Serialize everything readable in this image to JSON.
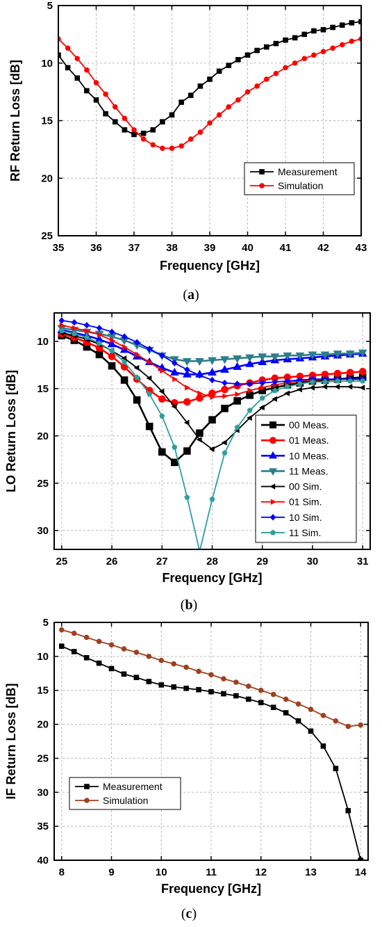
{
  "chart_data": [
    {
      "type": "line",
      "caption": "a",
      "xlabel": "Frequency [GHz]",
      "ylabel": "RF Return Loss [dB]",
      "xlim": [
        35,
        43
      ],
      "ylim": [
        5,
        25
      ],
      "y_inverted": true,
      "xticks": [
        35,
        36,
        37,
        38,
        39,
        40,
        41,
        42,
        43
      ],
      "yticks": [
        5,
        10,
        15,
        20,
        25
      ],
      "grid": true,
      "legend_position": "lower-right",
      "series": [
        {
          "name": "Measurement",
          "color": "#000000",
          "marker": "square",
          "x": [
            35.0,
            35.25,
            35.5,
            35.75,
            36.0,
            36.25,
            36.5,
            36.75,
            37.0,
            37.25,
            37.5,
            37.75,
            38.0,
            38.25,
            38.5,
            38.75,
            39.0,
            39.25,
            39.5,
            39.75,
            40.0,
            40.25,
            40.5,
            40.75,
            41.0,
            41.25,
            41.5,
            41.75,
            42.0,
            42.25,
            42.5,
            42.75,
            43.0
          ],
          "y": [
            9.3,
            10.4,
            11.3,
            12.4,
            13.2,
            14.4,
            15.1,
            15.8,
            16.2,
            16.1,
            15.8,
            15.1,
            14.5,
            13.4,
            12.8,
            12.0,
            11.4,
            10.7,
            10.2,
            9.7,
            9.3,
            8.9,
            8.6,
            8.3,
            8.0,
            7.8,
            7.5,
            7.2,
            7.1,
            6.9,
            6.7,
            6.5,
            6.4
          ]
        },
        {
          "name": "Simulation",
          "color": "#ff0000",
          "marker": "circle",
          "x": [
            35.0,
            35.25,
            35.5,
            35.75,
            36.0,
            36.25,
            36.5,
            36.75,
            37.0,
            37.25,
            37.5,
            37.75,
            38.0,
            38.25,
            38.5,
            38.75,
            39.0,
            39.25,
            39.5,
            39.75,
            40.0,
            40.25,
            40.5,
            40.75,
            41.0,
            41.25,
            41.5,
            41.75,
            42.0,
            42.25,
            42.5,
            42.75,
            43.0
          ],
          "y": [
            7.9,
            8.7,
            9.6,
            10.6,
            11.7,
            12.7,
            13.8,
            14.8,
            15.8,
            16.6,
            17.1,
            17.4,
            17.4,
            17.2,
            16.6,
            16.0,
            15.2,
            14.5,
            13.8,
            13.2,
            12.5,
            12.0,
            11.4,
            10.9,
            10.4,
            10.0,
            9.6,
            9.3,
            9.0,
            8.7,
            8.4,
            8.1,
            7.9
          ]
        }
      ]
    },
    {
      "type": "line",
      "caption": "b",
      "xlabel": "Frequency [GHz]",
      "ylabel": "LO Return Loss [dB]",
      "xlim": [
        24.85,
        31.15
      ],
      "ylim": [
        7.0,
        32.0
      ],
      "y_inverted": true,
      "xticks": [
        25,
        26,
        27,
        28,
        29,
        30,
        31
      ],
      "yticks": [
        10,
        15,
        20,
        25,
        30
      ],
      "grid": true,
      "legend_position": "right",
      "series": [
        {
          "name": "00 Meas.",
          "color": "#000000",
          "marker": "square",
          "x": [
            25.0,
            25.25,
            25.5,
            25.75,
            26.0,
            26.25,
            26.5,
            26.75,
            27.0,
            27.25,
            27.5,
            27.75,
            28.0,
            28.25,
            28.5,
            28.75,
            29.0,
            29.25,
            29.5,
            29.75,
            30.0,
            30.25,
            30.5,
            30.75,
            31.0
          ],
          "y": [
            9.4,
            9.9,
            10.6,
            11.4,
            12.6,
            14.1,
            16.2,
            19.0,
            21.7,
            22.8,
            21.6,
            19.7,
            18.3,
            17.1,
            16.3,
            15.7,
            15.2,
            14.9,
            14.6,
            14.4,
            14.2,
            14.1,
            14.0,
            13.9,
            13.8
          ]
        },
        {
          "name": "01 Meas.",
          "color": "#ff0000",
          "marker": "circle",
          "x": [
            25.0,
            25.25,
            25.5,
            25.75,
            26.0,
            26.25,
            26.5,
            26.75,
            27.0,
            27.25,
            27.5,
            27.75,
            28.0,
            28.25,
            28.5,
            28.75,
            29.0,
            29.25,
            29.5,
            29.75,
            30.0,
            30.25,
            30.5,
            30.75,
            31.0
          ],
          "y": [
            9.2,
            9.6,
            10.1,
            10.7,
            11.6,
            12.7,
            14.0,
            15.2,
            16.1,
            16.5,
            16.4,
            16.0,
            15.5,
            15.1,
            14.7,
            14.4,
            14.1,
            13.9,
            13.8,
            13.7,
            13.6,
            13.5,
            13.4,
            13.3,
            13.2
          ]
        },
        {
          "name": "10 Meas.",
          "color": "#0000ff",
          "marker": "triangle-up",
          "x": [
            25.0,
            25.25,
            25.5,
            25.75,
            26.0,
            26.25,
            26.5,
            26.75,
            27.0,
            27.25,
            27.5,
            27.75,
            28.0,
            28.25,
            28.5,
            28.75,
            29.0,
            29.25,
            29.5,
            29.75,
            30.0,
            30.25,
            30.5,
            30.75,
            31.0
          ],
          "y": [
            8.8,
            9.1,
            9.4,
            9.8,
            10.3,
            10.9,
            11.6,
            12.2,
            12.8,
            13.3,
            13.5,
            13.5,
            13.3,
            13.0,
            12.7,
            12.4,
            12.2,
            12.0,
            11.9,
            11.8,
            11.7,
            11.6,
            11.5,
            11.4,
            11.3
          ]
        },
        {
          "name": "11 Meas.",
          "color": "#2e7d8a",
          "marker": "triangle-down",
          "x": [
            25.0,
            25.25,
            25.5,
            25.75,
            26.0,
            26.25,
            26.5,
            26.75,
            27.0,
            27.25,
            27.5,
            27.75,
            28.0,
            28.25,
            28.5,
            28.75,
            29.0,
            29.25,
            29.5,
            29.75,
            30.0,
            30.25,
            30.5,
            30.75,
            31.0
          ],
          "y": [
            8.6,
            8.8,
            9.0,
            9.2,
            9.5,
            9.9,
            10.4,
            10.9,
            11.5,
            11.9,
            12.1,
            12.1,
            12.0,
            11.9,
            11.8,
            11.7,
            11.6,
            11.6,
            11.5,
            11.5,
            11.4,
            11.4,
            11.3,
            11.3,
            11.2
          ]
        },
        {
          "name": "00 Sim.",
          "color": "#000000",
          "marker": "triangle-left",
          "x": [
            25.0,
            25.25,
            25.5,
            25.75,
            26.0,
            26.25,
            26.5,
            26.75,
            27.0,
            27.25,
            27.5,
            27.75,
            28.0,
            28.25,
            28.5,
            28.75,
            29.0,
            29.25,
            29.5,
            29.75,
            30.0,
            30.25,
            30.5,
            30.75,
            31.0
          ],
          "y": [
            9.1,
            9.4,
            9.8,
            10.3,
            11.0,
            11.8,
            12.8,
            13.9,
            15.3,
            16.9,
            18.6,
            20.4,
            21.4,
            20.7,
            19.4,
            18.1,
            17.0,
            16.1,
            15.5,
            15.1,
            14.9,
            14.8,
            14.8,
            14.8,
            14.9
          ]
        },
        {
          "name": "01 Sim.",
          "color": "#ff0000",
          "marker": "triangle-right",
          "x": [
            25.0,
            25.25,
            25.5,
            25.75,
            26.0,
            26.25,
            26.5,
            26.75,
            27.0,
            27.25,
            27.5,
            27.75,
            28.0,
            28.25,
            28.5,
            28.75,
            29.0,
            29.25,
            29.5,
            29.75,
            30.0,
            30.25,
            30.5,
            30.75,
            31.0
          ],
          "y": [
            8.3,
            8.6,
            8.9,
            9.3,
            9.9,
            10.6,
            11.4,
            12.2,
            13.1,
            14.0,
            14.9,
            15.5,
            15.9,
            15.8,
            15.6,
            15.2,
            14.9,
            14.6,
            14.4,
            14.2,
            14.1,
            14.0,
            14.0,
            14.0,
            14.0
          ]
        },
        {
          "name": "10 Sim.",
          "color": "#0000ff",
          "marker": "diamond",
          "x": [
            25.0,
            25.25,
            25.5,
            25.75,
            26.0,
            26.25,
            26.5,
            26.75,
            27.0,
            27.25,
            27.5,
            27.75,
            28.0,
            28.25,
            28.5,
            28.75,
            29.0,
            29.25,
            29.5,
            29.75,
            30.0,
            30.25,
            30.5,
            30.75,
            31.0
          ],
          "y": [
            7.8,
            8.0,
            8.3,
            8.6,
            9.0,
            9.5,
            10.1,
            10.8,
            11.5,
            12.3,
            13.0,
            13.6,
            14.1,
            14.4,
            14.5,
            14.5,
            14.4,
            14.3,
            14.2,
            14.1,
            14.0,
            14.0,
            14.0,
            14.0,
            14.0
          ]
        },
        {
          "name": "11 Sim.",
          "color": "#2e9e9e",
          "marker": "pentagon",
          "x": [
            25.0,
            25.25,
            25.5,
            25.75,
            26.0,
            26.25,
            26.5,
            26.75,
            27.0,
            27.25,
            27.5,
            27.75,
            28.0,
            28.25,
            28.5,
            28.75,
            29.0,
            29.25,
            29.5,
            29.75,
            30.0,
            30.25,
            30.5,
            30.75,
            31.0
          ],
          "y": [
            8.9,
            9.2,
            9.6,
            10.2,
            11.0,
            12.2,
            13.8,
            15.6,
            17.9,
            21.2,
            26.5,
            32.2,
            26.7,
            21.8,
            19.1,
            17.3,
            16.0,
            15.2,
            14.8,
            14.5,
            14.3,
            14.3,
            14.2,
            14.2,
            14.2
          ]
        }
      ]
    },
    {
      "type": "line",
      "caption": "c",
      "xlabel": "Frequency [GHz]",
      "ylabel": "IF Return Loss [dB]",
      "xlim": [
        7.85,
        14.15
      ],
      "ylim": [
        5,
        40
      ],
      "y_inverted": true,
      "xticks": [
        8,
        9,
        10,
        11,
        12,
        13,
        14
      ],
      "yticks": [
        5,
        10,
        15,
        20,
        25,
        30,
        35,
        40
      ],
      "grid": true,
      "legend_position": "lower-left",
      "series": [
        {
          "name": "Measurement",
          "color": "#000000",
          "marker": "square",
          "x": [
            8.0,
            8.25,
            8.5,
            8.75,
            9.0,
            9.25,
            9.5,
            9.75,
            10.0,
            10.25,
            10.5,
            10.75,
            11.0,
            11.25,
            11.5,
            11.75,
            12.0,
            12.25,
            12.5,
            12.75,
            13.0,
            13.25,
            13.5,
            13.75,
            14.0
          ],
          "y": [
            8.5,
            9.3,
            10.2,
            11.0,
            11.8,
            12.6,
            13.1,
            13.7,
            14.2,
            14.5,
            14.7,
            14.9,
            15.2,
            15.5,
            15.8,
            16.3,
            16.8,
            17.5,
            18.3,
            19.5,
            21.0,
            23.2,
            26.5,
            32.7,
            40.0
          ]
        },
        {
          "name": "Simulation",
          "color": "#a0401e",
          "marker": "circle",
          "x": [
            8.0,
            8.25,
            8.5,
            8.75,
            9.0,
            9.25,
            9.5,
            9.75,
            10.0,
            10.25,
            10.5,
            10.75,
            11.0,
            11.25,
            11.5,
            11.75,
            12.0,
            12.25,
            12.5,
            12.75,
            13.0,
            13.25,
            13.5,
            13.75,
            14.0
          ],
          "y": [
            6.1,
            6.6,
            7.2,
            7.8,
            8.3,
            8.9,
            9.4,
            10.0,
            10.6,
            11.1,
            11.6,
            12.2,
            12.7,
            13.3,
            13.8,
            14.4,
            15.0,
            15.6,
            16.3,
            17.0,
            17.8,
            18.7,
            19.5,
            20.3,
            20.1
          ]
        }
      ]
    }
  ]
}
